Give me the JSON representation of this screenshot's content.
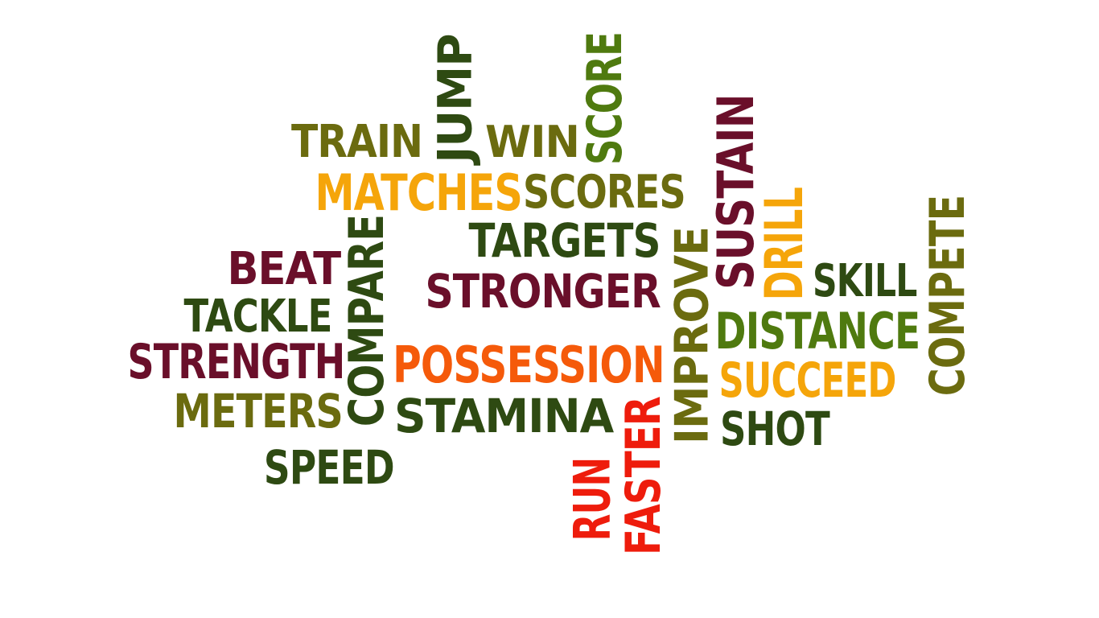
{
  "palette": {
    "olive": "#6b6b0f",
    "dark_green": "#2e4a12",
    "green": "#4f7a0f",
    "maroon": "#6a0f2a",
    "amber": "#f5a50a",
    "orange": "#f55a0a",
    "red": "#ee1c0c"
  },
  "words": [
    {
      "text": "TRAIN",
      "color": "#6b6b0f",
      "orientation": "horizontal"
    },
    {
      "text": "JUMP",
      "color": "#2e4a12",
      "orientation": "vertical"
    },
    {
      "text": "WIN",
      "color": "#6b6b0f",
      "orientation": "horizontal"
    },
    {
      "text": "SCORE",
      "color": "#4f7a0f",
      "orientation": "vertical"
    },
    {
      "text": "SUSTAIN",
      "color": "#6a0f2a",
      "orientation": "vertical"
    },
    {
      "text": "MATCHES",
      "color": "#f5a50a",
      "orientation": "horizontal"
    },
    {
      "text": "SCORES",
      "color": "#6b6b0f",
      "orientation": "horizontal"
    },
    {
      "text": "DRILL",
      "color": "#f5a50a",
      "orientation": "vertical"
    },
    {
      "text": "COMPETE",
      "color": "#6b6b0f",
      "orientation": "vertical"
    },
    {
      "text": "TARGETS",
      "color": "#2e4a12",
      "orientation": "horizontal"
    },
    {
      "text": "IMPROVE",
      "color": "#6b6b0f",
      "orientation": "vertical"
    },
    {
      "text": "SKILL",
      "color": "#2e4a12",
      "orientation": "horizontal"
    },
    {
      "text": "BEAT",
      "color": "#6a0f2a",
      "orientation": "horizontal"
    },
    {
      "text": "COMPARE",
      "color": "#2e4a12",
      "orientation": "vertical"
    },
    {
      "text": "STRONGER",
      "color": "#6a0f2a",
      "orientation": "horizontal"
    },
    {
      "text": "DISTANCE",
      "color": "#4f7a0f",
      "orientation": "horizontal"
    },
    {
      "text": "TACKLE",
      "color": "#2e4a12",
      "orientation": "horizontal"
    },
    {
      "text": "STRENGTH",
      "color": "#6a0f2a",
      "orientation": "horizontal"
    },
    {
      "text": "POSSESSION",
      "color": "#f55a0a",
      "orientation": "horizontal"
    },
    {
      "text": "SUCCEED",
      "color": "#f5a50a",
      "orientation": "horizontal"
    },
    {
      "text": "METERS",
      "color": "#6b6b0f",
      "orientation": "horizontal"
    },
    {
      "text": "STAMINA",
      "color": "#2e4a12",
      "orientation": "horizontal"
    },
    {
      "text": "FASTER",
      "color": "#ee1c0c",
      "orientation": "vertical"
    },
    {
      "text": "SHOT",
      "color": "#2e4a12",
      "orientation": "horizontal"
    },
    {
      "text": "SPEED",
      "color": "#2e4a12",
      "orientation": "horizontal"
    },
    {
      "text": "RUN",
      "color": "#ee1c0c",
      "orientation": "vertical"
    }
  ]
}
